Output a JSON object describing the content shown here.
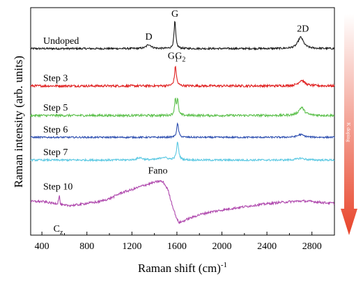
{
  "chart_data": {
    "type": "line",
    "xlabel": "Raman shift (cm)",
    "xlabel_exponent": "-1",
    "ylabel": "Raman intensity (arb. units)",
    "xlim": [
      300,
      3000
    ],
    "xticks": [
      400,
      800,
      1200,
      1600,
      2000,
      2400,
      2800
    ],
    "xtick_labels": [
      "400",
      "800",
      "1200",
      "1600",
      "2000",
      "2400",
      "2800"
    ],
    "y_ticks_shown": false,
    "legend": "none",
    "side_arrow": {
      "label": "K doping",
      "direction": "down",
      "color_top": "#ffffff",
      "color_bottom": "#e8442a"
    },
    "series": [
      {
        "name": "Undoped",
        "color": "#1a1a1a",
        "baseline": 0.82,
        "noise": 0.004,
        "peaks": [
          {
            "x": 1350,
            "h": 0.018,
            "w": 25
          },
          {
            "x": 1582,
            "h": 0.12,
            "w": 9
          },
          {
            "x": 2700,
            "h": 0.05,
            "w": 30
          }
        ]
      },
      {
        "name": "Step 3",
        "color": "#e02020",
        "baseline": 0.656,
        "noise": 0.005,
        "peaks": [
          {
            "x": 1587,
            "h": 0.085,
            "w": 10
          },
          {
            "x": 2708,
            "h": 0.025,
            "w": 32
          }
        ]
      },
      {
        "name": "Step 5",
        "color": "#5cc04c",
        "baseline": 0.526,
        "noise": 0.005,
        "peaks": [
          {
            "x": 1586,
            "h": 0.07,
            "w": 8
          },
          {
            "x": 1606,
            "h": 0.065,
            "w": 8
          },
          {
            "x": 2708,
            "h": 0.035,
            "w": 30
          }
        ]
      },
      {
        "name": "Step 6",
        "color": "#2e4fb0",
        "baseline": 0.43,
        "noise": 0.0035,
        "peaks": [
          {
            "x": 1606,
            "h": 0.06,
            "w": 10
          },
          {
            "x": 2700,
            "h": 0.012,
            "w": 35
          }
        ]
      },
      {
        "name": "Step 7",
        "color": "#5ac8e2",
        "baseline": 0.33,
        "noise": 0.004,
        "peaks": [
          {
            "x": 1270,
            "h": 0.01,
            "w": 30
          },
          {
            "x": 1480,
            "h": 0.012,
            "w": 40
          },
          {
            "x": 1606,
            "h": 0.078,
            "w": 11
          },
          {
            "x": 2700,
            "h": 0.008,
            "w": 40
          }
        ]
      },
      {
        "name": "Step 10",
        "color": "#b04aae",
        "noise": 0.005,
        "points": [
          [
            300,
            0.148
          ],
          [
            400,
            0.148
          ],
          [
            500,
            0.14
          ],
          [
            540,
            0.14
          ],
          [
            555,
            0.175
          ],
          [
            565,
            0.135
          ],
          [
            600,
            0.13
          ],
          [
            700,
            0.132
          ],
          [
            800,
            0.14
          ],
          [
            900,
            0.146
          ],
          [
            1000,
            0.16
          ],
          [
            1100,
            0.185
          ],
          [
            1200,
            0.2
          ],
          [
            1300,
            0.218
          ],
          [
            1400,
            0.232
          ],
          [
            1450,
            0.238
          ],
          [
            1480,
            0.232
          ],
          [
            1520,
            0.2
          ],
          [
            1560,
            0.13
          ],
          [
            1600,
            0.07
          ],
          [
            1620,
            0.055
          ],
          [
            1650,
            0.06
          ],
          [
            1700,
            0.072
          ],
          [
            1800,
            0.09
          ],
          [
            1900,
            0.102
          ],
          [
            2000,
            0.11
          ],
          [
            2100,
            0.118
          ],
          [
            2200,
            0.125
          ],
          [
            2300,
            0.132
          ],
          [
            2400,
            0.138
          ],
          [
            2500,
            0.143
          ],
          [
            2600,
            0.147
          ],
          [
            2700,
            0.15
          ],
          [
            2800,
            0.148
          ],
          [
            2900,
            0.143
          ],
          [
            3000,
            0.14
          ]
        ]
      }
    ],
    "annotations": [
      {
        "text": "D",
        "x": 1350,
        "y": 0.86
      },
      {
        "text": "G",
        "x": 1582,
        "y": 0.96
      },
      {
        "text": "2D",
        "x": 2720,
        "y": 0.895
      },
      {
        "text": "G",
        "sub": "1",
        "x": 1565,
        "y": 0.775
      },
      {
        "text": "G",
        "sub": "2",
        "x": 1630,
        "y": 0.775
      },
      {
        "text": "Fano",
        "x": 1430,
        "y": 0.27
      },
      {
        "text": "C",
        "sub": "z",
        "x": 545,
        "y": 0.015
      }
    ]
  }
}
